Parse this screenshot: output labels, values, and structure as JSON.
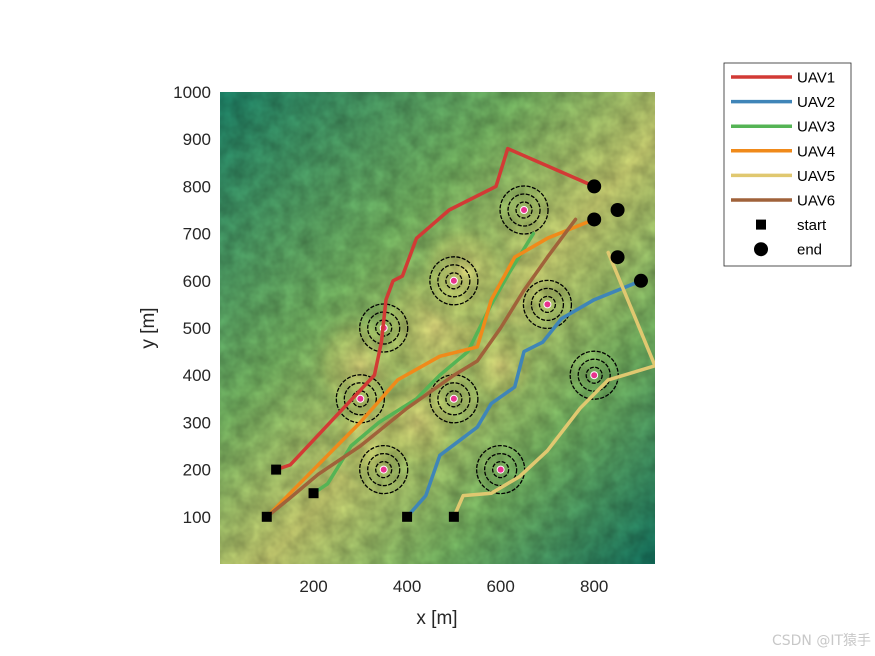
{
  "chart_data": {
    "type": "line",
    "xlabel": "x [m]",
    "ylabel": "y [m]",
    "xlim": [
      0,
      930
    ],
    "ylim": [
      0,
      1000
    ],
    "xticks": [
      200,
      400,
      600,
      800
    ],
    "yticks": [
      100,
      200,
      300,
      400,
      500,
      600,
      700,
      800,
      900,
      1000
    ],
    "background": "terrain elevation map (green lowlands to yellow highlands)",
    "legend_position": "outside-right",
    "series": [
      {
        "name": "UAV1",
        "color": "#d23a35",
        "points": [
          [
            120,
            200
          ],
          [
            150,
            210
          ],
          [
            330,
            400
          ],
          [
            345,
            470
          ],
          [
            355,
            560
          ],
          [
            370,
            600
          ],
          [
            390,
            610
          ],
          [
            420,
            690
          ],
          [
            490,
            750
          ],
          [
            590,
            800
          ],
          [
            615,
            880
          ],
          [
            800,
            800
          ]
        ]
      },
      {
        "name": "UAV2",
        "color": "#3f85b8",
        "points": [
          [
            400,
            100
          ],
          [
            440,
            145
          ],
          [
            470,
            230
          ],
          [
            510,
            260
          ],
          [
            550,
            290
          ],
          [
            580,
            340
          ],
          [
            630,
            375
          ],
          [
            650,
            450
          ],
          [
            690,
            470
          ],
          [
            730,
            520
          ],
          [
            800,
            560
          ],
          [
            900,
            600
          ]
        ]
      },
      {
        "name": "UAV3",
        "color": "#55b455",
        "points": [
          [
            200,
            150
          ],
          [
            230,
            170
          ],
          [
            280,
            250
          ],
          [
            340,
            300
          ],
          [
            420,
            350
          ],
          [
            470,
            400
          ],
          [
            530,
            450
          ],
          [
            580,
            550
          ],
          [
            620,
            620
          ],
          [
            670,
            700
          ]
        ]
      },
      {
        "name": "UAV4",
        "color": "#f08a1a",
        "points": [
          [
            100,
            100
          ],
          [
            190,
            190
          ],
          [
            300,
            300
          ],
          [
            380,
            390
          ],
          [
            470,
            440
          ],
          [
            550,
            460
          ],
          [
            580,
            560
          ],
          [
            630,
            650
          ],
          [
            700,
            690
          ],
          [
            800,
            730
          ]
        ]
      },
      {
        "name": "UAV5",
        "color": "#e0c870",
        "points": [
          [
            500,
            100
          ],
          [
            520,
            145
          ],
          [
            580,
            150
          ],
          [
            640,
            185
          ],
          [
            700,
            240
          ],
          [
            770,
            330
          ],
          [
            830,
            390
          ],
          [
            930,
            420
          ],
          [
            830,
            660
          ]
        ]
      },
      {
        "name": "UAV6",
        "color": "#a0623a",
        "points": [
          [
            100,
            100
          ],
          [
            150,
            140
          ],
          [
            210,
            190
          ],
          [
            300,
            250
          ],
          [
            400,
            330
          ],
          [
            500,
            400
          ],
          [
            550,
            430
          ],
          [
            600,
            500
          ],
          [
            650,
            580
          ],
          [
            700,
            650
          ],
          [
            760,
            730
          ]
        ]
      }
    ],
    "start_points": [
      [
        120,
        200
      ],
      [
        200,
        150
      ],
      [
        100,
        100
      ],
      [
        400,
        100
      ],
      [
        500,
        100
      ]
    ],
    "end_points": [
      [
        800,
        800
      ],
      [
        850,
        750
      ],
      [
        800,
        730
      ],
      [
        850,
        650
      ],
      [
        900,
        600
      ]
    ],
    "start_marker_label": "start",
    "end_marker_label": "end",
    "threats": [
      [
        650,
        750
      ],
      [
        500,
        600
      ],
      [
        350,
        500
      ],
      [
        700,
        550
      ],
      [
        800,
        400
      ],
      [
        300,
        350
      ],
      [
        500,
        350
      ],
      [
        350,
        200
      ],
      [
        600,
        200
      ]
    ]
  }
}
